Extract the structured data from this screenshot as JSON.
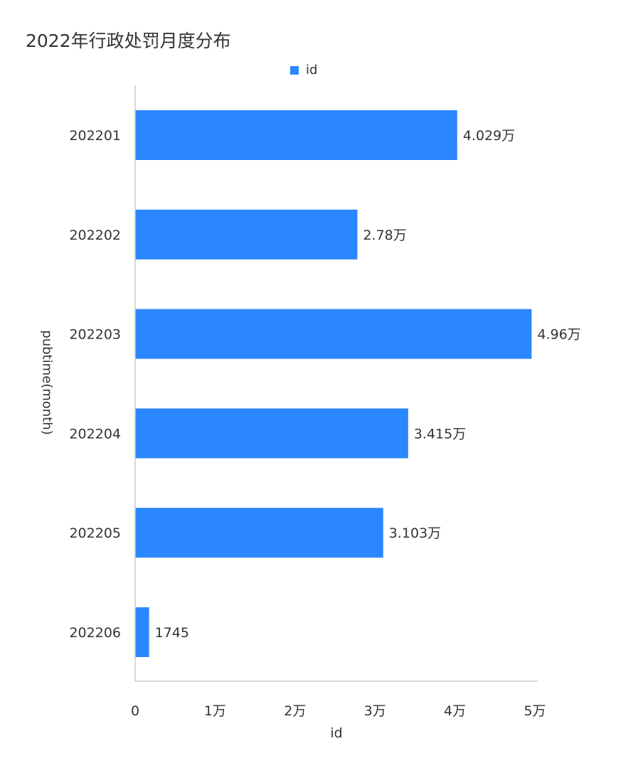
{
  "chart_data": {
    "type": "bar",
    "orientation": "horizontal",
    "title": "2022年行政处罚月度分布",
    "xlabel": "id",
    "ylabel": "pubtime(month)",
    "categories": [
      "202201",
      "202202",
      "202203",
      "202204",
      "202205",
      "202206"
    ],
    "series": [
      {
        "name": "id",
        "values": [
          40290,
          27800,
          49600,
          34150,
          31030,
          1745
        ],
        "labels": [
          "4.029万",
          "2.78万",
          "4.96万",
          "3.415万",
          "3.103万",
          "1745"
        ],
        "color": "#2b87ff"
      }
    ],
    "xlim": [
      0,
      50000
    ],
    "xticks": [
      0,
      10000,
      20000,
      30000,
      40000,
      50000
    ],
    "xtick_labels": [
      "0",
      "1万",
      "2万",
      "3万",
      "4万",
      "5万"
    ],
    "grid": false,
    "legend_position": "top-center"
  },
  "colors": {
    "bar": "#2b87ff",
    "axis": "#cccccc",
    "text": "#333333"
  }
}
